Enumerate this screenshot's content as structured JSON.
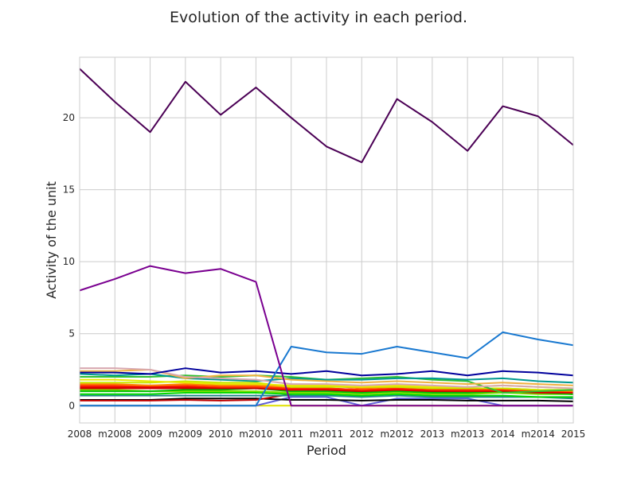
{
  "chart_data": {
    "type": "line",
    "title": "Evolution of the activity in each period.",
    "xlabel": "Period",
    "ylabel": "Activity of the unit",
    "categories": [
      "2008",
      "m2008",
      "2009",
      "m2009",
      "2010",
      "m2010",
      "2011",
      "m2011",
      "2012",
      "m2012",
      "2013",
      "m2013",
      "2014",
      "m2014",
      "2015"
    ],
    "ylim": [
      -1.2,
      24.2
    ],
    "yticks": [
      0,
      5,
      10,
      15,
      20
    ],
    "grid": true,
    "legend": "none",
    "series": [
      {
        "color": "#4b0055",
        "values": [
          23.4,
          21.1,
          19.0,
          22.5,
          20.2,
          22.1,
          20.0,
          18.0,
          16.9,
          21.3,
          19.7,
          17.7,
          20.8,
          20.1,
          18.1
        ]
      },
      {
        "color": "#7a0090",
        "values": [
          8.0,
          8.8,
          9.7,
          9.2,
          9.5,
          8.6,
          0.0,
          0.0,
          0.0,
          0.0,
          0.0,
          0.0,
          0.0,
          0.0,
          0.0
        ]
      },
      {
        "color": "#1878d0",
        "values": [
          0.0,
          0.0,
          0.0,
          0.0,
          0.0,
          0.0,
          4.1,
          3.7,
          3.6,
          4.1,
          3.7,
          3.3,
          5.1,
          4.6,
          4.2
        ]
      },
      {
        "color": "#00009c",
        "values": [
          2.3,
          2.3,
          2.2,
          2.6,
          2.3,
          2.4,
          2.2,
          2.4,
          2.1,
          2.2,
          2.4,
          2.1,
          2.4,
          2.3,
          2.1
        ]
      },
      {
        "color": "#d8a8b0",
        "values": [
          2.6,
          2.6,
          2.5,
          2.0,
          1.9,
          1.8,
          1.5,
          1.5,
          1.4,
          1.5,
          1.4,
          1.3,
          1.4,
          1.3,
          1.2
        ]
      },
      {
        "color": "#f0b040",
        "values": [
          2.4,
          2.4,
          2.5,
          1.9,
          2.1,
          2.1,
          1.8,
          1.7,
          1.6,
          1.7,
          1.6,
          1.5,
          1.6,
          1.5,
          1.4
        ]
      },
      {
        "color": "#009890",
        "values": [
          2.2,
          2.1,
          2.2,
          1.9,
          1.8,
          1.7,
          1.9,
          1.8,
          1.8,
          1.9,
          1.9,
          1.8,
          1.9,
          1.7,
          1.6
        ]
      },
      {
        "color": "#30c030",
        "values": [
          2.0,
          2.0,
          2.0,
          2.1,
          2.0,
          2.1,
          2.0,
          1.8,
          1.9,
          2.0,
          1.8,
          1.7,
          0.9,
          1.0,
          1.1
        ]
      },
      {
        "color": "#e8e800",
        "values": [
          1.8,
          1.8,
          1.7,
          1.6,
          1.5,
          1.5,
          1.4,
          1.4,
          1.3,
          1.4,
          1.3,
          1.3,
          1.4,
          1.3,
          1.2
        ]
      },
      {
        "color": "#c8e800",
        "values": [
          1.6,
          1.6,
          1.6,
          1.7,
          1.6,
          1.6,
          1.3,
          1.3,
          1.3,
          1.3,
          1.2,
          1.2,
          1.2,
          1.1,
          1.1
        ]
      },
      {
        "color": "#ff8000",
        "values": [
          1.5,
          1.5,
          1.4,
          1.5,
          1.4,
          1.4,
          1.3,
          1.4,
          1.2,
          1.3,
          1.2,
          1.2,
          1.2,
          1.1,
          1.0
        ]
      },
      {
        "color": "#ff3000",
        "values": [
          1.4,
          1.4,
          1.4,
          1.4,
          1.3,
          1.3,
          1.2,
          1.2,
          1.1,
          1.2,
          1.1,
          1.1,
          1.1,
          1.0,
          1.0
        ]
      },
      {
        "color": "#e80000",
        "values": [
          1.3,
          1.3,
          1.3,
          1.3,
          1.3,
          1.3,
          1.1,
          1.2,
          1.1,
          1.1,
          1.1,
          1.0,
          1.1,
          1.0,
          0.9
        ]
      },
      {
        "color": "#cc0000",
        "values": [
          1.2,
          1.2,
          1.2,
          1.2,
          1.2,
          1.2,
          1.1,
          1.1,
          1.0,
          1.1,
          1.0,
          1.0,
          1.0,
          0.9,
          0.9
        ]
      },
      {
        "color": "#00c000",
        "values": [
          1.0,
          1.0,
          1.0,
          1.1,
          1.1,
          1.2,
          1.0,
          1.0,
          0.9,
          1.0,
          0.9,
          0.9,
          1.0,
          0.9,
          0.8
        ]
      },
      {
        "color": "#80e000",
        "values": [
          1.1,
          1.1,
          1.0,
          1.0,
          1.0,
          1.0,
          0.9,
          0.9,
          0.8,
          0.9,
          0.8,
          0.8,
          0.9,
          0.8,
          0.8
        ]
      },
      {
        "color": "#00d800",
        "values": [
          0.8,
          0.8,
          0.8,
          0.9,
          0.9,
          0.9,
          0.8,
          0.8,
          0.7,
          0.8,
          0.7,
          0.7,
          0.7,
          0.6,
          0.6
        ]
      },
      {
        "color": "#208888",
        "values": [
          0.7,
          0.7,
          0.7,
          0.7,
          0.7,
          0.7,
          0.7,
          0.7,
          0.6,
          0.7,
          0.6,
          0.6,
          0.6,
          0.6,
          0.5
        ]
      },
      {
        "color": "#c00000",
        "values": [
          0.35,
          0.35,
          0.35,
          0.4,
          0.35,
          0.4,
          0.8,
          1.0,
          1.0,
          1.1,
          1.0,
          0.9,
          1.0,
          0.9,
          0.8
        ]
      },
      {
        "color": "#000000",
        "values": [
          0.4,
          0.4,
          0.4,
          0.5,
          0.5,
          0.5,
          0.4,
          0.4,
          0.35,
          0.4,
          0.4,
          0.35,
          0.35,
          0.35,
          0.3
        ]
      },
      {
        "color": "#6060d8",
        "values": [
          0.0,
          0.0,
          0.0,
          0.0,
          0.0,
          0.0,
          0.6,
          0.6,
          0.0,
          0.5,
          0.5,
          0.5,
          0.0,
          0.0,
          0.0
        ]
      },
      {
        "color": "#e0e000",
        "values": [
          0.0,
          0.0,
          0.0,
          0.0,
          0.0,
          0.0,
          0.0,
          0.0,
          0.0,
          0.0,
          0.0,
          0.0,
          0.0,
          0.0,
          0.0
        ]
      }
    ]
  }
}
